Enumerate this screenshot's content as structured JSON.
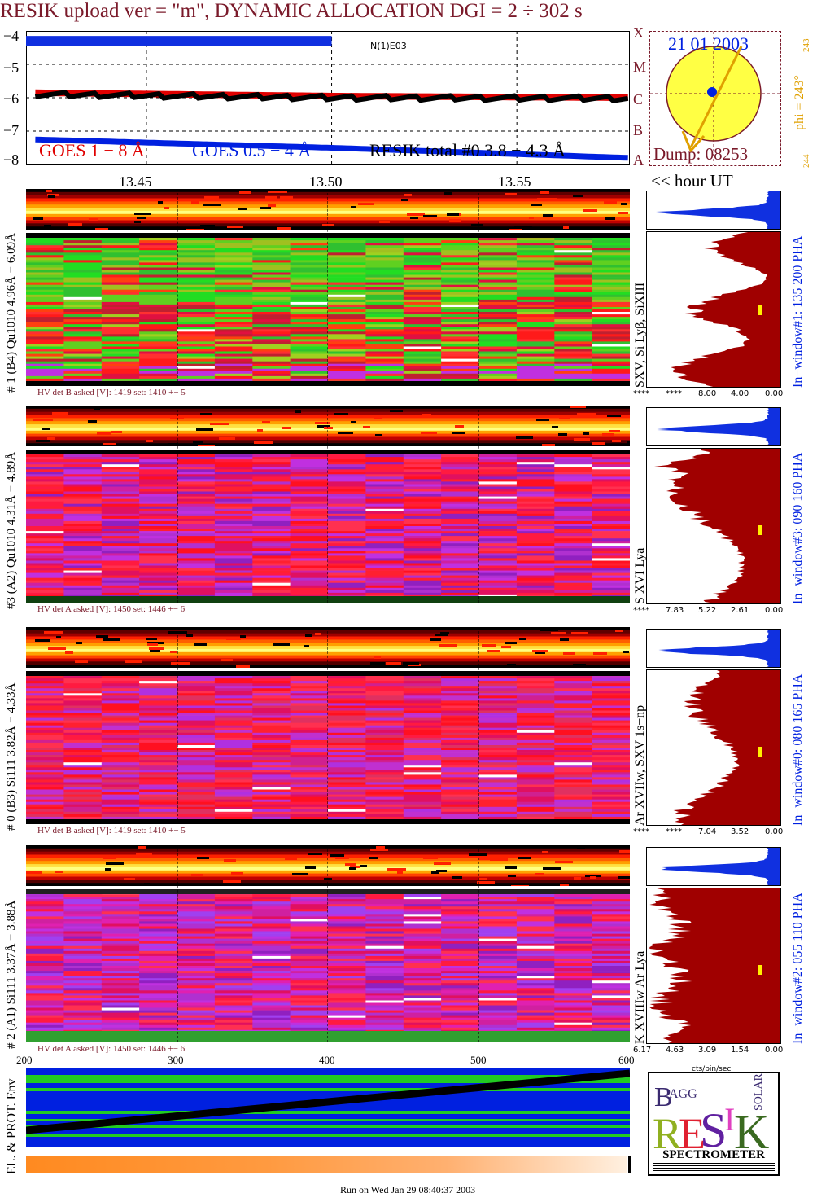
{
  "title": "RESIK upload ver = \"m\", DYNAMIC ALLOCATION  DGI =   2 ÷ 302 s",
  "goes": {
    "ylabels": [
      "−4",
      "−5",
      "−6",
      "−7",
      "−8"
    ],
    "legend_goes18": "GOES 1 − 8 Å",
    "legend_goes054": "GOES 0.5 − 4 Å",
    "legend_resik": "RESIK total #0  3.8 − 4.3 Å",
    "marker": "N(1)E03",
    "flare_classes": [
      "X",
      "M",
      "C",
      "B",
      "A"
    ]
  },
  "sun": {
    "date": "21 01 2003",
    "phi_label": "phi = 243°",
    "phi_small": "243",
    "phi_bottom": "244",
    "dump": "Dump: 08253"
  },
  "time_axis": {
    "labels": [
      "13.45",
      "13.50",
      "13.55"
    ],
    "unit_label": "<< hour UT"
  },
  "panels": [
    {
      "left_label": "# 1 (B4) Qu1010 4.96Å − 6.09Å",
      "lines_label": "SXV, Si Lyβ, SiXIII",
      "window_label": "In−window#1:  135 200 PHA",
      "hv": "HV det B asked [V]:  1419 set:  1410 +−    5",
      "pha_ticks": [
        "****",
        "****",
        "8.00",
        "4.00",
        "0.00"
      ]
    },
    {
      "left_label": "#3 (A2) Qu1010  4.31Å − 4.89Å",
      "lines_label": "S XVI Lya",
      "window_label": "In−window#3:  090 160 PHA",
      "hv": "HV det A asked [V]:  1450 set:  1446 +−    6",
      "pha_ticks": [
        "****",
        "7.83",
        "5.22",
        "2.61",
        "0.00"
      ]
    },
    {
      "left_label": "# 0 (B3) Si111  3.82Å − 4.33Å",
      "lines_label": "Ar XVIIw,  SXV 1s−np",
      "window_label": "In−window#0:  080 165 PHA",
      "hv": "HV det B asked [V]:  1419 set:  1410 +−    5",
      "pha_ticks": [
        "****",
        "****",
        "7.04",
        "3.52",
        "0.00"
      ]
    },
    {
      "left_label": "# 2 (A1) Si111  3.37Å − 3.88Å",
      "lines_label": "K XVIIIw  Ar Lya",
      "window_label": "In−window#2:  055 110 PHA",
      "hv": "HV det A asked [V]:  1450 set:  1446 +−    6",
      "pha_ticks": [
        "6.17",
        "4.63",
        "3.09",
        "1.54",
        "0.00"
      ]
    }
  ],
  "bottom_axis": {
    "ticks": [
      "200",
      "300",
      "400",
      "500",
      "600"
    ],
    "unit": "cts/bin/sec"
  },
  "env_label": "EL. & PROT. Env",
  "logo": {
    "letters": "BRAGG RESIK SOLAR",
    "caption": "SPECTROMETER"
  },
  "footer": "Run on Wed Jan 29 08:40:37 2003",
  "colors": {
    "title": "#7a1a2a",
    "goes18": "#e00000",
    "goes054": "#0020e0",
    "resik": "#000000",
    "pha_fill": "#a00000",
    "pha_top": "#1030e0"
  },
  "chart_data": {
    "type": "line",
    "title": "RESIK upload ver = \"m\", DYNAMIC ALLOCATION  DGI =   2 ÷ 302 s",
    "xlabel": "<< hour UT",
    "x_ticks": [
      "13.45",
      "13.50",
      "13.55"
    ],
    "ylim": [
      -8,
      -4
    ],
    "series": [
      {
        "name": "GOES 1 − 8 Å",
        "x": [
          13.42,
          13.5,
          13.58
        ],
        "values": [
          -5.85,
          -5.95,
          -6.0
        ]
      },
      {
        "name": "GOES 0.5 − 4 Å",
        "x": [
          13.42,
          13.5,
          13.58
        ],
        "values": [
          -7.25,
          -7.5,
          -7.8
        ]
      },
      {
        "name": "RESIK total #0  3.8 − 4.3 Å",
        "x": [
          13.42,
          13.5,
          13.58
        ],
        "values": [
          -5.9,
          -6.0,
          -6.02
        ]
      }
    ]
  }
}
